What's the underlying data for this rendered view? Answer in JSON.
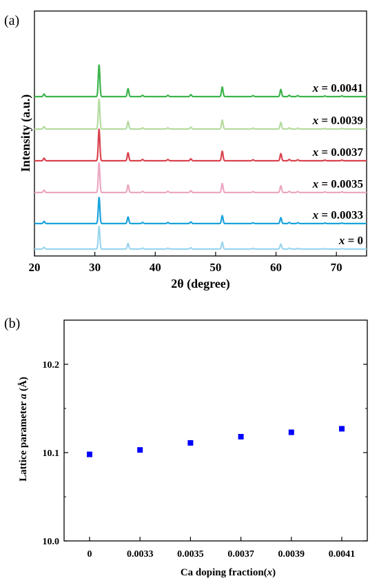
{
  "chart_data": [
    {
      "panel_label": "(a)",
      "type": "line",
      "xlabel": "2θ (degree)",
      "ylabel": "Intensity (a.u.)",
      "xlim": [
        20,
        75
      ],
      "xticks": [
        "20",
        "30",
        "40",
        "50",
        "60",
        "70"
      ],
      "peaks": [
        {
          "pos": 21.6,
          "rel": 0.08
        },
        {
          "pos": 30.7,
          "rel": 1.0
        },
        {
          "pos": 35.5,
          "rel": 0.25
        },
        {
          "pos": 37.9,
          "rel": 0.04
        },
        {
          "pos": 42.1,
          "rel": 0.04
        },
        {
          "pos": 45.9,
          "rel": 0.06
        },
        {
          "pos": 51.1,
          "rel": 0.3
        },
        {
          "pos": 56.2,
          "rel": 0.03
        },
        {
          "pos": 60.8,
          "rel": 0.22
        },
        {
          "pos": 62.2,
          "rel": 0.04
        },
        {
          "pos": 63.6,
          "rel": 0.03
        },
        {
          "pos": 68.1,
          "rel": 0.02
        },
        {
          "pos": 70.9,
          "rel": 0.02
        }
      ],
      "series": [
        {
          "label": "x = 0.0041",
          "prefix": "x",
          "value": " = 0.0041",
          "color": "#3cb44b"
        },
        {
          "label": "x = 0.0039",
          "prefix": "x",
          "value": " = 0.0039",
          "color": "#b5dba0"
        },
        {
          "label": "x = 0.0037",
          "prefix": "x",
          "value": " = 0.0037",
          "color": "#d9434f"
        },
        {
          "label": "x = 0.0035",
          "prefix": "x",
          "value": " = 0.0035",
          "color": "#eba7c2"
        },
        {
          "label": "x = 0.0033",
          "prefix": "x",
          "value": " = 0.0033",
          "color": "#1aa3dc"
        },
        {
          "label": "x = 0",
          "prefix": "x",
          "value": " = 0",
          "color": "#9bd6ee"
        }
      ]
    },
    {
      "panel_label": "(b)",
      "type": "scatter",
      "xlabel": "Ca doping fraction(",
      "xlabel_var": "x",
      "xlabel_end": ")",
      "ylabel": "Lattice parameter ",
      "ylabel_var": "a",
      "ylabel_end": " (Å)",
      "ylim": [
        10.0,
        10.25
      ],
      "yticks": [
        "10.0",
        "10.1",
        "10.2"
      ],
      "categories": [
        "0",
        "0.0033",
        "0.0035",
        "0.0037",
        "0.0039",
        "0.0041"
      ],
      "values": [
        10.098,
        10.103,
        10.111,
        10.118,
        10.123,
        10.127
      ],
      "marker_color": "#0000ff"
    }
  ]
}
